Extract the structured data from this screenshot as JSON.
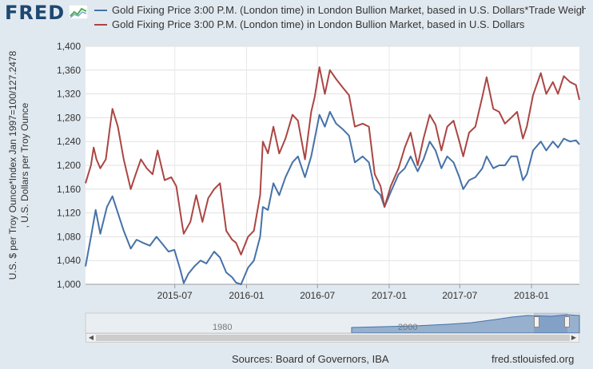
{
  "header": {
    "logo_text": "FRED",
    "menu_icon": "context-menu-icon"
  },
  "legend": [
    {
      "label": "Gold Fixing Price 3:00 P.M. (London time) in London Bullion Market, based in U.S. Dollars*Trade Weighted…",
      "color": "#4572a7"
    },
    {
      "label": "Gold Fixing Price 3:00 P.M. (London time) in London Bullion Market, based in U.S. Dollars",
      "color": "#aa4643"
    }
  ],
  "footer": {
    "sources": "Sources: Board of Governors, IBA",
    "site": "fred.stlouisfed.org"
  },
  "navigator": {
    "years": [
      "1980",
      "2000"
    ]
  },
  "chart_data": {
    "type": "line",
    "ylabel": "U.S. $ per Troy Ounce*Index Jan 1997=100/127.2478 , U.S. Dollars per Troy Ounce",
    "ylim": [
      1000,
      1400
    ],
    "yticks": [
      "1,000",
      "1,040",
      "1,080",
      "1,120",
      "1,160",
      "1,200",
      "1,240",
      "1,280",
      "1,320",
      "1,360",
      "1,400"
    ],
    "xlim": [
      "2014-11-14",
      "2018-05-04"
    ],
    "xticks": [
      {
        "date": "2015-07-01",
        "label": "2015-07"
      },
      {
        "date": "2016-01-01",
        "label": "2016-01"
      },
      {
        "date": "2016-07-01",
        "label": "2016-07"
      },
      {
        "date": "2017-01-01",
        "label": "2017-01"
      },
      {
        "date": "2017-07-01",
        "label": "2017-07"
      },
      {
        "date": "2018-01-01",
        "label": "2018-01"
      }
    ],
    "grid": true,
    "series": [
      {
        "name": "Gold Fixing Price 3:00 P.M. (London time) in London Bullion Market, based in U.S. Dollars*Trade Weighted…",
        "color": "#4572a7",
        "points": [
          [
            "2014-11-14",
            1030
          ],
          [
            "2014-11-28",
            1080
          ],
          [
            "2014-12-10",
            1125
          ],
          [
            "2014-12-22",
            1085
          ],
          [
            "2015-01-08",
            1130
          ],
          [
            "2015-01-22",
            1148
          ],
          [
            "2015-02-05",
            1120
          ],
          [
            "2015-02-20",
            1090
          ],
          [
            "2015-03-10",
            1060
          ],
          [
            "2015-03-25",
            1075
          ],
          [
            "2015-04-10",
            1070
          ],
          [
            "2015-04-28",
            1065
          ],
          [
            "2015-05-15",
            1080
          ],
          [
            "2015-05-30",
            1068
          ],
          [
            "2015-06-15",
            1055
          ],
          [
            "2015-06-30",
            1058
          ],
          [
            "2015-07-15",
            1025
          ],
          [
            "2015-07-24",
            1002
          ],
          [
            "2015-08-05",
            1018
          ],
          [
            "2015-08-20",
            1030
          ],
          [
            "2015-09-05",
            1040
          ],
          [
            "2015-09-20",
            1035
          ],
          [
            "2015-10-10",
            1055
          ],
          [
            "2015-10-25",
            1045
          ],
          [
            "2015-11-10",
            1020
          ],
          [
            "2015-11-25",
            1012
          ],
          [
            "2015-12-05",
            1003
          ],
          [
            "2015-12-18",
            1000
          ],
          [
            "2016-01-05",
            1028
          ],
          [
            "2016-01-20",
            1040
          ],
          [
            "2016-02-05",
            1080
          ],
          [
            "2016-02-12",
            1130
          ],
          [
            "2016-02-25",
            1125
          ],
          [
            "2016-03-10",
            1170
          ],
          [
            "2016-03-25",
            1150
          ],
          [
            "2016-04-10",
            1180
          ],
          [
            "2016-04-28",
            1205
          ],
          [
            "2016-05-12",
            1215
          ],
          [
            "2016-05-30",
            1180
          ],
          [
            "2016-06-15",
            1215
          ],
          [
            "2016-06-24",
            1245
          ],
          [
            "2016-07-06",
            1285
          ],
          [
            "2016-07-20",
            1265
          ],
          [
            "2016-08-02",
            1290
          ],
          [
            "2016-08-18",
            1270
          ],
          [
            "2016-09-05",
            1260
          ],
          [
            "2016-09-20",
            1250
          ],
          [
            "2016-10-05",
            1205
          ],
          [
            "2016-10-25",
            1215
          ],
          [
            "2016-11-10",
            1205
          ],
          [
            "2016-11-25",
            1160
          ],
          [
            "2016-12-10",
            1150
          ],
          [
            "2016-12-20",
            1130
          ],
          [
            "2017-01-05",
            1155
          ],
          [
            "2017-01-25",
            1185
          ],
          [
            "2017-02-10",
            1195
          ],
          [
            "2017-02-25",
            1215
          ],
          [
            "2017-03-15",
            1190
          ],
          [
            "2017-03-30",
            1210
          ],
          [
            "2017-04-15",
            1240
          ],
          [
            "2017-04-30",
            1225
          ],
          [
            "2017-05-15",
            1195
          ],
          [
            "2017-05-30",
            1215
          ],
          [
            "2017-06-15",
            1205
          ],
          [
            "2017-06-30",
            1180
          ],
          [
            "2017-07-10",
            1160
          ],
          [
            "2017-07-25",
            1175
          ],
          [
            "2017-08-10",
            1180
          ],
          [
            "2017-08-28",
            1195
          ],
          [
            "2017-09-08",
            1215
          ],
          [
            "2017-09-25",
            1195
          ],
          [
            "2017-10-10",
            1200
          ],
          [
            "2017-10-25",
            1200
          ],
          [
            "2017-11-10",
            1215
          ],
          [
            "2017-11-25",
            1215
          ],
          [
            "2017-12-10",
            1175
          ],
          [
            "2017-12-20",
            1185
          ],
          [
            "2018-01-05",
            1225
          ],
          [
            "2018-01-25",
            1240
          ],
          [
            "2018-02-08",
            1225
          ],
          [
            "2018-02-25",
            1240
          ],
          [
            "2018-03-10",
            1230
          ],
          [
            "2018-03-25",
            1245
          ],
          [
            "2018-04-10",
            1240
          ],
          [
            "2018-04-25",
            1242
          ],
          [
            "2018-05-04",
            1235
          ]
        ]
      },
      {
        "name": "Gold Fixing Price 3:00 P.M. (London time) in London Bullion Market, based in U.S. Dollars",
        "color": "#aa4643",
        "points": [
          [
            "2014-11-14",
            1170
          ],
          [
            "2014-11-28",
            1200
          ],
          [
            "2014-12-05",
            1230
          ],
          [
            "2014-12-12",
            1210
          ],
          [
            "2014-12-22",
            1195
          ],
          [
            "2015-01-05",
            1210
          ],
          [
            "2015-01-15",
            1260
          ],
          [
            "2015-01-22",
            1295
          ],
          [
            "2015-02-05",
            1265
          ],
          [
            "2015-02-20",
            1210
          ],
          [
            "2015-03-10",
            1160
          ],
          [
            "2015-03-20",
            1180
          ],
          [
            "2015-04-05",
            1210
          ],
          [
            "2015-04-20",
            1195
          ],
          [
            "2015-05-05",
            1185
          ],
          [
            "2015-05-18",
            1225
          ],
          [
            "2015-06-05",
            1175
          ],
          [
            "2015-06-22",
            1180
          ],
          [
            "2015-07-05",
            1165
          ],
          [
            "2015-07-20",
            1100
          ],
          [
            "2015-07-24",
            1085
          ],
          [
            "2015-08-10",
            1105
          ],
          [
            "2015-08-25",
            1150
          ],
          [
            "2015-09-10",
            1105
          ],
          [
            "2015-09-25",
            1145
          ],
          [
            "2015-10-10",
            1160
          ],
          [
            "2015-10-25",
            1170
          ],
          [
            "2015-11-10",
            1090
          ],
          [
            "2015-11-25",
            1075
          ],
          [
            "2015-12-05",
            1070
          ],
          [
            "2015-12-18",
            1050
          ],
          [
            "2016-01-05",
            1080
          ],
          [
            "2016-01-20",
            1090
          ],
          [
            "2016-02-05",
            1150
          ],
          [
            "2016-02-12",
            1240
          ],
          [
            "2016-02-25",
            1220
          ],
          [
            "2016-03-10",
            1265
          ],
          [
            "2016-03-25",
            1220
          ],
          [
            "2016-04-10",
            1245
          ],
          [
            "2016-04-28",
            1285
          ],
          [
            "2016-05-12",
            1275
          ],
          [
            "2016-05-30",
            1210
          ],
          [
            "2016-06-15",
            1290
          ],
          [
            "2016-06-24",
            1315
          ],
          [
            "2016-07-06",
            1365
          ],
          [
            "2016-07-20",
            1320
          ],
          [
            "2016-08-02",
            1360
          ],
          [
            "2016-08-18",
            1345
          ],
          [
            "2016-09-05",
            1330
          ],
          [
            "2016-09-20",
            1318
          ],
          [
            "2016-10-05",
            1265
          ],
          [
            "2016-10-25",
            1270
          ],
          [
            "2016-11-10",
            1265
          ],
          [
            "2016-11-25",
            1185
          ],
          [
            "2016-12-10",
            1165
          ],
          [
            "2016-12-20",
            1130
          ],
          [
            "2017-01-05",
            1165
          ],
          [
            "2017-01-25",
            1195
          ],
          [
            "2017-02-10",
            1230
          ],
          [
            "2017-02-25",
            1255
          ],
          [
            "2017-03-15",
            1200
          ],
          [
            "2017-03-30",
            1245
          ],
          [
            "2017-04-15",
            1285
          ],
          [
            "2017-04-30",
            1268
          ],
          [
            "2017-05-15",
            1225
          ],
          [
            "2017-05-30",
            1265
          ],
          [
            "2017-06-15",
            1275
          ],
          [
            "2017-06-30",
            1240
          ],
          [
            "2017-07-10",
            1215
          ],
          [
            "2017-07-25",
            1255
          ],
          [
            "2017-08-10",
            1265
          ],
          [
            "2017-08-28",
            1315
          ],
          [
            "2017-09-08",
            1348
          ],
          [
            "2017-09-25",
            1295
          ],
          [
            "2017-10-10",
            1290
          ],
          [
            "2017-10-25",
            1270
          ],
          [
            "2017-11-10",
            1280
          ],
          [
            "2017-11-25",
            1290
          ],
          [
            "2017-12-10",
            1245
          ],
          [
            "2017-12-20",
            1265
          ],
          [
            "2018-01-05",
            1318
          ],
          [
            "2018-01-25",
            1355
          ],
          [
            "2018-02-08",
            1320
          ],
          [
            "2018-02-25",
            1340
          ],
          [
            "2018-03-10",
            1320
          ],
          [
            "2018-03-25",
            1350
          ],
          [
            "2018-04-10",
            1340
          ],
          [
            "2018-04-25",
            1335
          ],
          [
            "2018-05-04",
            1310
          ]
        ]
      }
    ]
  }
}
